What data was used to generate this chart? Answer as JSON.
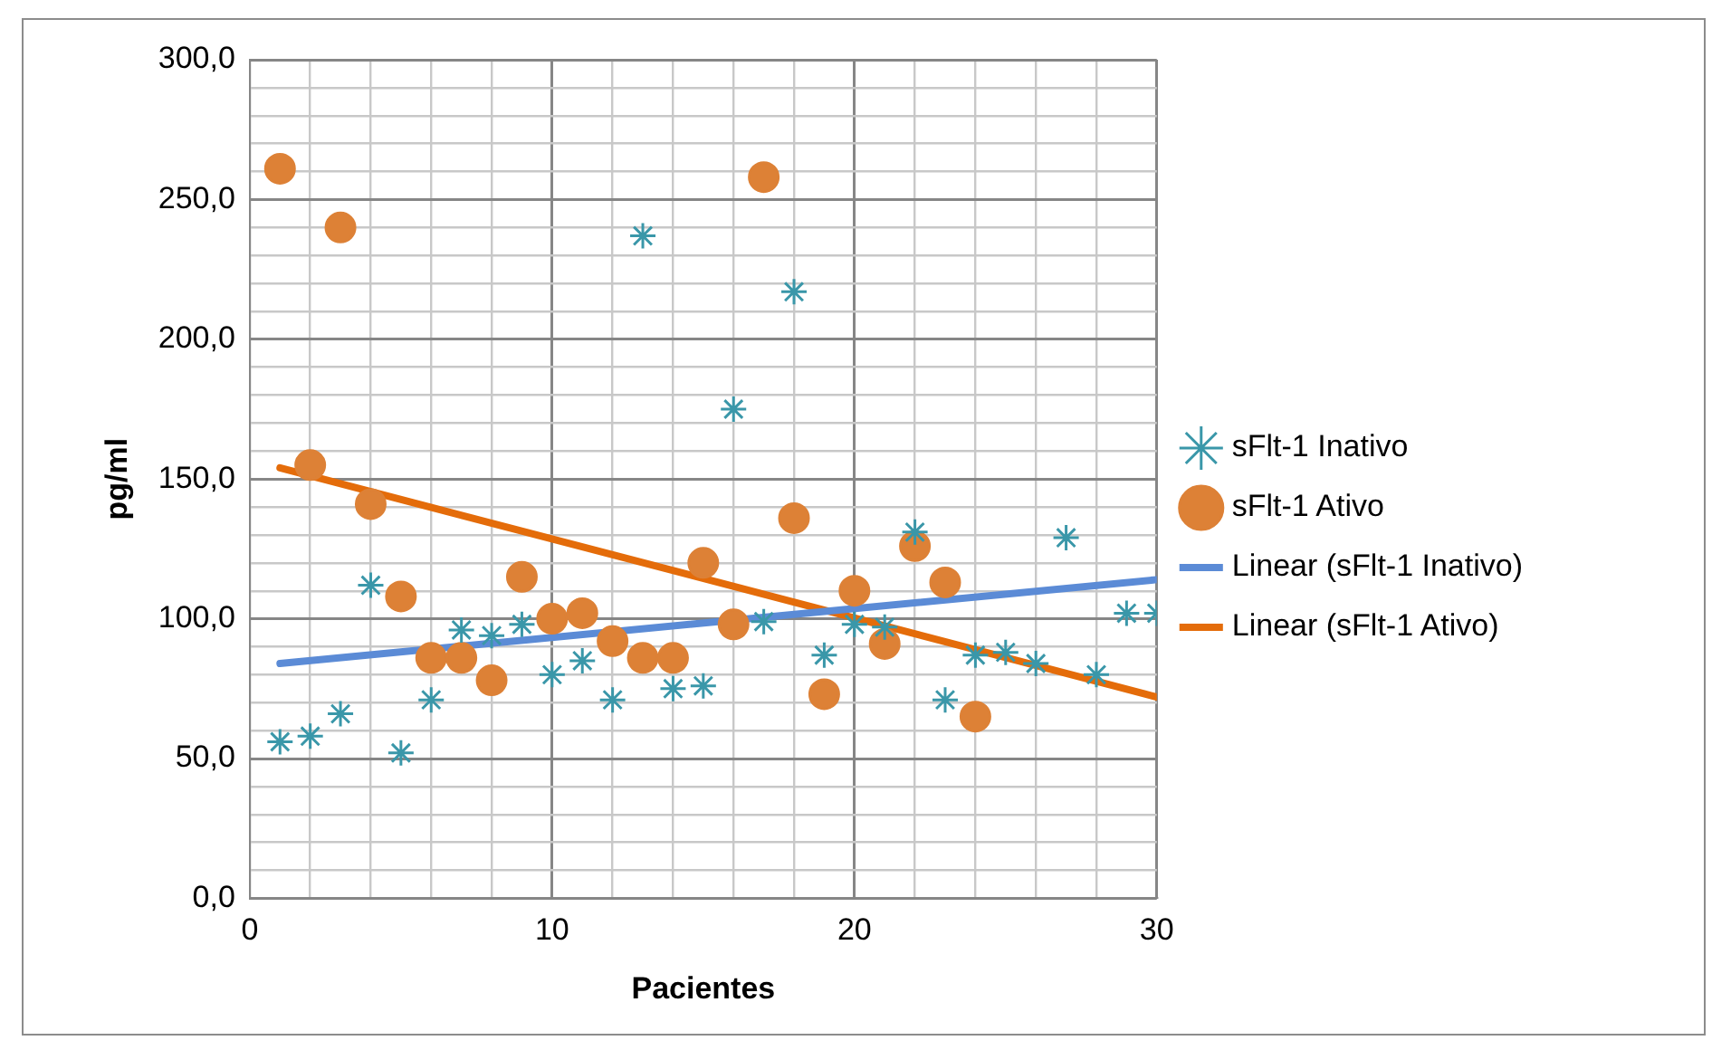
{
  "chart_data": {
    "type": "scatter",
    "xlabel": "Pacientes",
    "ylabel": "pg/ml",
    "xlim": [
      0,
      30
    ],
    "ylim": [
      0,
      300
    ],
    "xticks": [
      0,
      {
        "value": 2,
        "label": null
      },
      {
        "value": 4,
        "label": null
      },
      {
        "value": 6,
        "label": null
      },
      {
        "value": 8,
        "label": null
      },
      10,
      {
        "value": 12,
        "label": null
      },
      {
        "value": 14,
        "label": null
      },
      {
        "value": 16,
        "label": null
      },
      {
        "value": 18,
        "label": null
      },
      20,
      {
        "value": 22,
        "label": null
      },
      {
        "value": 24,
        "label": null
      },
      {
        "value": 26,
        "label": null
      },
      {
        "value": 28,
        "label": null
      },
      30
    ],
    "yticks": [
      {
        "value": 0,
        "label": "0,0"
      },
      {
        "value": 10,
        "label": null
      },
      {
        "value": 20,
        "label": null
      },
      {
        "value": 30,
        "label": null
      },
      {
        "value": 40,
        "label": null
      },
      {
        "value": 50,
        "label": "50,0"
      },
      {
        "value": 60,
        "label": null
      },
      {
        "value": 70,
        "label": null
      },
      {
        "value": 80,
        "label": null
      },
      {
        "value": 90,
        "label": null
      },
      {
        "value": 100,
        "label": "100,0"
      },
      {
        "value": 110,
        "label": null
      },
      {
        "value": 120,
        "label": null
      },
      {
        "value": 130,
        "label": null
      },
      {
        "value": 140,
        "label": null
      },
      {
        "value": 150,
        "label": "150,0"
      },
      {
        "value": 160,
        "label": null
      },
      {
        "value": 170,
        "label": null
      },
      {
        "value": 180,
        "label": null
      },
      {
        "value": 190,
        "label": null
      },
      {
        "value": 200,
        "label": "200,0"
      },
      {
        "value": 210,
        "label": null
      },
      {
        "value": 220,
        "label": null
      },
      {
        "value": 230,
        "label": null
      },
      {
        "value": 240,
        "label": null
      },
      {
        "value": 250,
        "label": "250,0"
      },
      {
        "value": 260,
        "label": null
      },
      {
        "value": 270,
        "label": null
      },
      {
        "value": 280,
        "label": null
      },
      {
        "value": 290,
        "label": null
      },
      {
        "value": 300,
        "label": "300,0"
      }
    ],
    "grid": true,
    "legend": "right",
    "series": [
      {
        "name": "sFlt-1 Inativo",
        "type": "scatter",
        "marker": "cross",
        "color": "#3a97a9",
        "x": [
          1,
          2,
          3,
          4,
          5,
          6,
          7,
          8,
          9,
          10,
          11,
          12,
          13,
          14,
          15,
          16,
          17,
          18,
          19,
          20,
          21,
          22,
          23,
          24,
          25,
          26,
          27,
          28,
          29,
          30
        ],
        "values": [
          56,
          58,
          66,
          112,
          52,
          71,
          96,
          94,
          98,
          80,
          85,
          71,
          237,
          75,
          76,
          175,
          99,
          217,
          87,
          98,
          97,
          131,
          71,
          87,
          88,
          84,
          129,
          80,
          102,
          102
        ]
      },
      {
        "name": "sFlt-1 Ativo",
        "type": "scatter",
        "marker": "circle",
        "color": "#dd8136",
        "x": [
          1,
          2,
          3,
          4,
          5,
          6,
          7,
          8,
          9,
          10,
          11,
          12,
          13,
          14,
          15,
          16,
          17,
          18,
          19,
          20,
          21,
          22,
          23,
          24
        ],
        "values": [
          261,
          155,
          240,
          141,
          108,
          86,
          86,
          78,
          115,
          100,
          102,
          92,
          86,
          86,
          120,
          98,
          258,
          136,
          73,
          110,
          91,
          126,
          113,
          65
        ]
      },
      {
        "name": "Linear (sFlt-1 Inativo)",
        "type": "line",
        "marker": "none",
        "color": "#5b8bd6",
        "x": [
          1,
          30
        ],
        "values": [
          84,
          114
        ]
      },
      {
        "name": "Linear (sFlt-1 Ativo)",
        "type": "line",
        "marker": "none",
        "color": "#e46c0a",
        "x": [
          1,
          30
        ],
        "values": [
          154,
          72
        ]
      }
    ]
  }
}
